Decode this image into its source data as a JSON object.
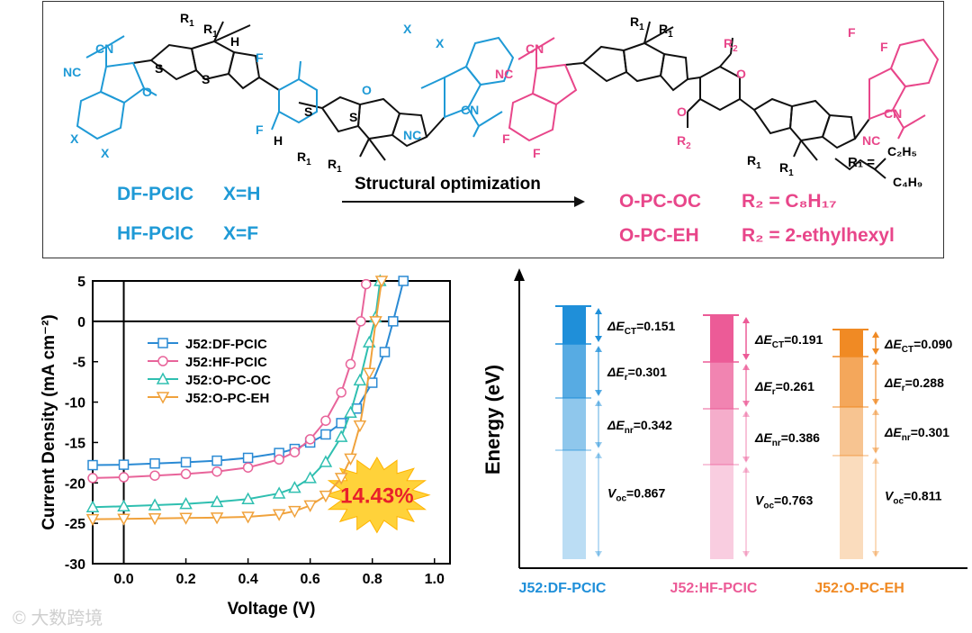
{
  "scheme": {
    "left": {
      "atoms": {
        "cn": "CN",
        "nc": "NC",
        "o": "O",
        "s": "S",
        "x": "X",
        "f": "F",
        "h": "H",
        "r1": "R",
        "sub1": "1"
      },
      "names": [
        "DF-PCIC",
        "HF-PCIC"
      ],
      "defs": [
        "X=H",
        "X=F"
      ]
    },
    "arrow_label": "Structural optimization",
    "right": {
      "atoms": {
        "o": "O",
        "r2": "R",
        "sub2": "2"
      },
      "names": [
        "O-PC-OC",
        "O-PC-EH"
      ],
      "defs": [
        "R₂ = C₈H₁₇",
        "R₂ = 2-ethylhexyl"
      ],
      "r1_def": "R₁ =",
      "r1_branch_top": "C₂H₅",
      "r1_branch_bottom": "C₄H₉"
    }
  },
  "jv_chart": {
    "chart_data": {
      "type": "line",
      "xlabel": "Voltage (V)",
      "ylabel": "Current Density (mA cm⁻²)",
      "xlim": [
        -0.1,
        1.05
      ],
      "ylim": [
        -30,
        5
      ],
      "xticks": [
        "0.0",
        "0.2",
        "0.4",
        "0.6",
        "0.8",
        "1.0"
      ],
      "xtick_values": [
        0.0,
        0.2,
        0.4,
        0.6,
        0.8,
        1.0
      ],
      "yticks": [
        "5",
        "0",
        "-5",
        "-10",
        "-15",
        "-20",
        "-25",
        "-30"
      ],
      "ytick_values": [
        5,
        0,
        -5,
        -10,
        -15,
        -20,
        -25,
        -30
      ],
      "series": [
        {
          "name": "J52:DF-PCIC",
          "color": "#2a8ad4",
          "marker": "square",
          "x": [
            -0.1,
            0.0,
            0.1,
            0.2,
            0.3,
            0.4,
            0.5,
            0.55,
            0.6,
            0.65,
            0.7,
            0.75,
            0.8,
            0.84,
            0.867,
            0.9
          ],
          "y": [
            -17.8,
            -17.75,
            -17.6,
            -17.45,
            -17.25,
            -16.9,
            -16.3,
            -15.8,
            -15.0,
            -14.0,
            -12.6,
            -10.8,
            -7.6,
            -3.8,
            0.0,
            5.0
          ]
        },
        {
          "name": "J52:HF-PCIC",
          "color": "#e8649a",
          "marker": "circle",
          "x": [
            -0.1,
            0.0,
            0.1,
            0.2,
            0.3,
            0.4,
            0.5,
            0.55,
            0.6,
            0.65,
            0.7,
            0.73,
            0.763,
            0.78
          ],
          "y": [
            -19.4,
            -19.3,
            -19.1,
            -18.9,
            -18.6,
            -18.1,
            -17.1,
            -16.2,
            -14.6,
            -12.3,
            -8.8,
            -5.3,
            0.0,
            4.6
          ]
        },
        {
          "name": "J52:O-PC-OC",
          "color": "#2fbfb0",
          "marker": "triangle-up",
          "x": [
            -0.1,
            0.0,
            0.1,
            0.2,
            0.3,
            0.4,
            0.5,
            0.55,
            0.6,
            0.65,
            0.7,
            0.73,
            0.76,
            0.79,
            0.81,
            0.825
          ],
          "y": [
            -23.0,
            -22.9,
            -22.75,
            -22.6,
            -22.35,
            -22.0,
            -21.3,
            -20.6,
            -19.4,
            -17.4,
            -14.3,
            -11.3,
            -7.3,
            -2.6,
            0.5,
            5.0
          ]
        },
        {
          "name": "J52:O-PC-EH",
          "color": "#f0a23c",
          "marker": "triangle-down",
          "x": [
            -0.1,
            0.0,
            0.1,
            0.2,
            0.3,
            0.4,
            0.5,
            0.55,
            0.6,
            0.65,
            0.7,
            0.73,
            0.76,
            0.79,
            0.811,
            0.83
          ],
          "y": [
            -24.5,
            -24.45,
            -24.4,
            -24.35,
            -24.3,
            -24.2,
            -23.9,
            -23.5,
            -22.8,
            -21.6,
            -19.4,
            -17.0,
            -12.9,
            -6.4,
            0.0,
            5.0
          ]
        }
      ],
      "legend_position": "top-left"
    },
    "highlight_label": "14.43%"
  },
  "energy_chart": {
    "ylabel": "Energy (eV)",
    "columns": [
      {
        "name": "J52:DF-PCIC",
        "color": "#1f8fd9",
        "ct_label": "ΔE",
        "ct_sub": "CT",
        "ct_value": "=0.151",
        "r_label": "ΔE",
        "r_sub": "r",
        "r_value": "=0.301",
        "nr_label": "ΔE",
        "nr_sub": "nr",
        "nr_value": "=0.342",
        "voc_label": "V",
        "voc_sub": "oc",
        "voc_value": "=0.867"
      },
      {
        "name": "J52:HF-PCIC",
        "color": "#ec5b97",
        "ct_label": "ΔE",
        "ct_sub": "CT",
        "ct_value": "=0.191",
        "r_label": "ΔE",
        "r_sub": "r",
        "r_value": "=0.261",
        "nr_label": "ΔE",
        "nr_sub": "nr",
        "nr_value": "=0.386",
        "voc_label": "V",
        "voc_sub": "oc",
        "voc_value": "=0.763"
      },
      {
        "name": "J52:O-PC-EH",
        "color": "#f08a24",
        "ct_label": "ΔE",
        "ct_sub": "CT",
        "ct_value": "=0.090",
        "r_label": "ΔE",
        "r_sub": "r",
        "r_value": "=0.288",
        "nr_label": "ΔE",
        "nr_sub": "nr",
        "nr_value": "=0.301",
        "voc_label": "V",
        "voc_sub": "oc",
        "voc_value": "=0.811"
      }
    ]
  },
  "watermark": "大数跨境"
}
